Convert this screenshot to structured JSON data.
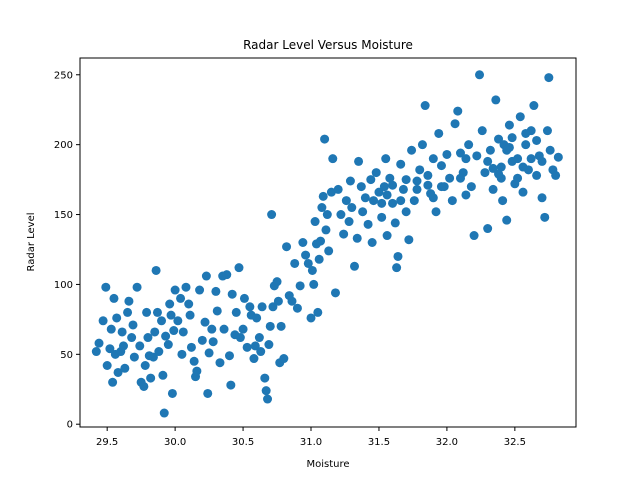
{
  "chart_data": {
    "type": "scatter",
    "title": "Radar Level Versus Moisture",
    "xlabel": "Moisture",
    "ylabel": "Radar Level",
    "xlim": [
      29.3,
      32.95
    ],
    "ylim": [
      -2,
      262
    ],
    "xticks": [
      29.5,
      30.0,
      30.5,
      31.0,
      31.5,
      32.0,
      32.5
    ],
    "xtick_labels": [
      "29.5",
      "30.0",
      "30.5",
      "31.0",
      "31.5",
      "32.0",
      "32.5"
    ],
    "yticks": [
      0,
      50,
      100,
      150,
      200,
      250
    ],
    "ytick_labels": [
      "0",
      "50",
      "100",
      "150",
      "200",
      "250"
    ],
    "grid": false,
    "legend": null,
    "marker_color": "#1f77b4",
    "points": [
      [
        29.42,
        52
      ],
      [
        29.44,
        58
      ],
      [
        29.47,
        74
      ],
      [
        29.49,
        98
      ],
      [
        29.5,
        42
      ],
      [
        29.52,
        54
      ],
      [
        29.53,
        68
      ],
      [
        29.54,
        30
      ],
      [
        29.55,
        90
      ],
      [
        29.56,
        50
      ],
      [
        29.57,
        76
      ],
      [
        29.58,
        37
      ],
      [
        29.6,
        52
      ],
      [
        29.61,
        66
      ],
      [
        29.62,
        56
      ],
      [
        29.63,
        40
      ],
      [
        29.65,
        80
      ],
      [
        29.66,
        88
      ],
      [
        29.68,
        62
      ],
      [
        29.69,
        71
      ],
      [
        29.7,
        48
      ],
      [
        29.72,
        98
      ],
      [
        29.74,
        56
      ],
      [
        29.75,
        30
      ],
      [
        29.77,
        27
      ],
      [
        29.78,
        42
      ],
      [
        29.79,
        80
      ],
      [
        29.8,
        62
      ],
      [
        29.81,
        49
      ],
      [
        29.82,
        33
      ],
      [
        29.84,
        48
      ],
      [
        29.85,
        66
      ],
      [
        29.86,
        110
      ],
      [
        29.87,
        80
      ],
      [
        29.88,
        52
      ],
      [
        29.9,
        74
      ],
      [
        29.91,
        35
      ],
      [
        29.92,
        8
      ],
      [
        29.93,
        63
      ],
      [
        29.95,
        57
      ],
      [
        29.96,
        86
      ],
      [
        29.97,
        78
      ],
      [
        29.98,
        22
      ],
      [
        29.99,
        67
      ],
      [
        30.0,
        96
      ],
      [
        30.02,
        74
      ],
      [
        30.04,
        90
      ],
      [
        30.05,
        50
      ],
      [
        30.06,
        66
      ],
      [
        30.08,
        98
      ],
      [
        30.1,
        86
      ],
      [
        30.11,
        78
      ],
      [
        30.12,
        55
      ],
      [
        30.14,
        45
      ],
      [
        30.15,
        34
      ],
      [
        30.16,
        38
      ],
      [
        30.18,
        96
      ],
      [
        30.2,
        60
      ],
      [
        30.22,
        73
      ],
      [
        30.23,
        106
      ],
      [
        30.24,
        22
      ],
      [
        30.25,
        51
      ],
      [
        30.27,
        68
      ],
      [
        30.28,
        59
      ],
      [
        30.3,
        95
      ],
      [
        30.31,
        81
      ],
      [
        30.33,
        44
      ],
      [
        30.35,
        106
      ],
      [
        30.36,
        68
      ],
      [
        30.38,
        107
      ],
      [
        30.4,
        49
      ],
      [
        30.41,
        28
      ],
      [
        30.42,
        93
      ],
      [
        30.44,
        64
      ],
      [
        30.45,
        80
      ],
      [
        30.47,
        112
      ],
      [
        30.48,
        62
      ],
      [
        30.5,
        68
      ],
      [
        30.51,
        90
      ],
      [
        30.53,
        55
      ],
      [
        30.55,
        84
      ],
      [
        30.56,
        78
      ],
      [
        30.58,
        47
      ],
      [
        30.59,
        56
      ],
      [
        30.6,
        76
      ],
      [
        30.62,
        62
      ],
      [
        30.63,
        52
      ],
      [
        30.64,
        84
      ],
      [
        30.66,
        33
      ],
      [
        30.67,
        24
      ],
      [
        30.68,
        18
      ],
      [
        30.69,
        57
      ],
      [
        30.7,
        70
      ],
      [
        30.71,
        150
      ],
      [
        30.72,
        84
      ],
      [
        30.73,
        99
      ],
      [
        30.75,
        102
      ],
      [
        30.76,
        88
      ],
      [
        30.77,
        44
      ],
      [
        30.78,
        70
      ],
      [
        30.8,
        47
      ],
      [
        30.82,
        127
      ],
      [
        30.84,
        92
      ],
      [
        30.86,
        88
      ],
      [
        30.88,
        115
      ],
      [
        30.9,
        83
      ],
      [
        30.92,
        99
      ],
      [
        30.94,
        130
      ],
      [
        30.96,
        121
      ],
      [
        30.98,
        115
      ],
      [
        31.0,
        76
      ],
      [
        31.01,
        110
      ],
      [
        31.02,
        100
      ],
      [
        31.03,
        145
      ],
      [
        31.04,
        129
      ],
      [
        31.05,
        80
      ],
      [
        31.06,
        118
      ],
      [
        31.07,
        131
      ],
      [
        31.08,
        155
      ],
      [
        31.09,
        163
      ],
      [
        31.1,
        204
      ],
      [
        31.11,
        139
      ],
      [
        31.12,
        150
      ],
      [
        31.13,
        124
      ],
      [
        31.15,
        166
      ],
      [
        31.16,
        190
      ],
      [
        31.18,
        94
      ],
      [
        31.2,
        168
      ],
      [
        31.22,
        150
      ],
      [
        31.24,
        136
      ],
      [
        31.26,
        160
      ],
      [
        31.28,
        145
      ],
      [
        31.29,
        174
      ],
      [
        31.3,
        155
      ],
      [
        31.32,
        113
      ],
      [
        31.34,
        133
      ],
      [
        31.35,
        188
      ],
      [
        31.37,
        170
      ],
      [
        31.38,
        152
      ],
      [
        31.4,
        162
      ],
      [
        31.42,
        143
      ],
      [
        31.44,
        175
      ],
      [
        31.45,
        130
      ],
      [
        31.46,
        160
      ],
      [
        31.48,
        180
      ],
      [
        31.5,
        166
      ],
      [
        31.52,
        148
      ],
      [
        31.54,
        170
      ],
      [
        31.55,
        190
      ],
      [
        31.56,
        135
      ],
      [
        31.58,
        176
      ],
      [
        31.6,
        158
      ],
      [
        31.62,
        144
      ],
      [
        31.63,
        112
      ],
      [
        31.64,
        120
      ],
      [
        31.66,
        186
      ],
      [
        31.68,
        168
      ],
      [
        31.7,
        152
      ],
      [
        31.72,
        132
      ],
      [
        31.74,
        196
      ],
      [
        31.76,
        160
      ],
      [
        31.78,
        174
      ],
      [
        31.8,
        182
      ],
      [
        31.82,
        200
      ],
      [
        31.84,
        228
      ],
      [
        31.86,
        178
      ],
      [
        31.88,
        165
      ],
      [
        31.9,
        190
      ],
      [
        31.92,
        152
      ],
      [
        31.94,
        208
      ],
      [
        31.96,
        185
      ],
      [
        31.98,
        170
      ],
      [
        32.0,
        193
      ],
      [
        32.02,
        176
      ],
      [
        32.04,
        160
      ],
      [
        32.06,
        215
      ],
      [
        32.08,
        224
      ],
      [
        32.1,
        194
      ],
      [
        32.12,
        180
      ],
      [
        32.14,
        164
      ],
      [
        32.16,
        200
      ],
      [
        32.18,
        170
      ],
      [
        32.2,
        135
      ],
      [
        32.22,
        192
      ],
      [
        32.24,
        250
      ],
      [
        32.26,
        210
      ],
      [
        32.28,
        180
      ],
      [
        32.3,
        140
      ],
      [
        32.32,
        196
      ],
      [
        32.34,
        168
      ],
      [
        32.36,
        232
      ],
      [
        32.38,
        204
      ],
      [
        32.4,
        184
      ],
      [
        32.41,
        160
      ],
      [
        32.42,
        200
      ],
      [
        32.44,
        146
      ],
      [
        32.46,
        214
      ],
      [
        32.48,
        188
      ],
      [
        32.5,
        172
      ],
      [
        32.52,
        190
      ],
      [
        32.54,
        220
      ],
      [
        32.56,
        166
      ],
      [
        32.58,
        200
      ],
      [
        32.6,
        182
      ],
      [
        32.62,
        210
      ],
      [
        32.64,
        228
      ],
      [
        32.66,
        178
      ],
      [
        32.68,
        192
      ],
      [
        32.7,
        162
      ],
      [
        32.72,
        148
      ],
      [
        32.74,
        210
      ],
      [
        32.75,
        248
      ],
      [
        32.76,
        196
      ],
      [
        32.78,
        182
      ],
      [
        32.8,
        178
      ],
      [
        32.82,
        191
      ],
      [
        32.46,
        198
      ],
      [
        32.52,
        176
      ],
      [
        32.58,
        208
      ],
      [
        32.4,
        176
      ],
      [
        32.1,
        176
      ],
      [
        31.96,
        170
      ],
      [
        31.9,
        162
      ],
      [
        31.86,
        171
      ],
      [
        31.78,
        168
      ],
      [
        31.7,
        175
      ],
      [
        31.66,
        160
      ],
      [
        31.6,
        171
      ],
      [
        31.56,
        164
      ],
      [
        31.52,
        158
      ],
      [
        32.3,
        188
      ],
      [
        32.34,
        183
      ],
      [
        32.38,
        179
      ],
      [
        32.44,
        196
      ],
      [
        32.48,
        205
      ],
      [
        32.56,
        184
      ],
      [
        32.62,
        190
      ],
      [
        32.66,
        203
      ],
      [
        32.7,
        188
      ],
      [
        32.14,
        190
      ]
    ]
  }
}
